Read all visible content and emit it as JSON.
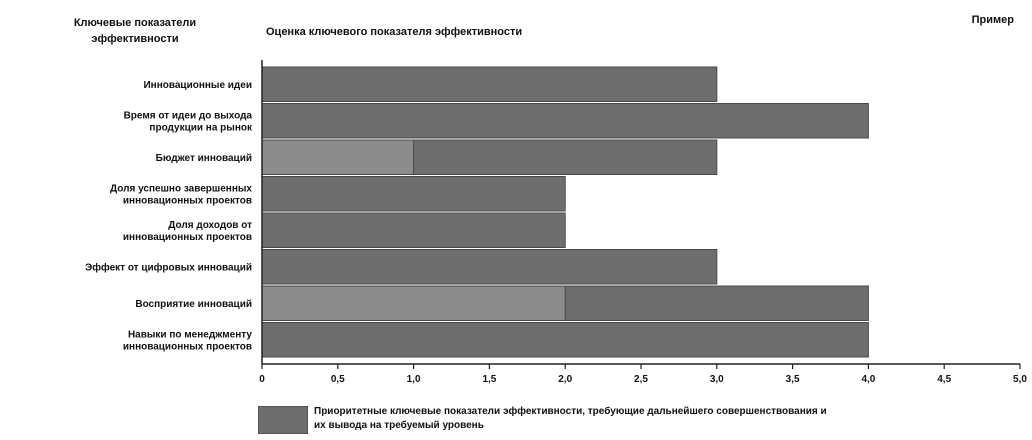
{
  "corner_label": "Пример",
  "chart_data": {
    "type": "bar",
    "orientation": "horizontal",
    "title": "Оценка ключевого показателя эффективности",
    "ylabel": "Ключевые показатели эффективности",
    "categories": [
      "Инновационные идеи",
      "Время от идеи до выхода продукции на рынок",
      "Бюджет инноваций",
      "Доля успешно завершенных инновационных проектов",
      "Доля доходов от инновационных проектов",
      "Эффект от цифровых инноваций",
      "Восприятие инноваций",
      "Навыки по менеджменту инновационных проектов"
    ],
    "category_lines": [
      [
        "Инновационные идеи"
      ],
      [
        "Время от идеи до выхода",
        "продукции на рынок"
      ],
      [
        "Бюджет инноваций"
      ],
      [
        "Доля успешно завершенных",
        "инновационных проектов"
      ],
      [
        "Доля доходов от",
        "инновационных проектов"
      ],
      [
        "Эффект от цифровых инноваций"
      ],
      [
        "Восприятие инноваций"
      ],
      [
        "Навыки по менеджменту",
        "инновационных проектов"
      ]
    ],
    "series": [
      {
        "name": "Приоритетные ключевые показатели эффективности, требующие дальнейшего совершенствования и их вывода на требуемый уровень",
        "values": [
          3.0,
          4.0,
          3.0,
          2.0,
          2.0,
          3.0,
          4.0,
          4.0
        ]
      }
    ],
    "secondary_values": [
      null,
      null,
      1.0,
      null,
      null,
      null,
      2.0,
      null
    ],
    "xlim": [
      0,
      5.0
    ],
    "xticks": [
      0,
      0.5,
      1.0,
      1.5,
      2.0,
      2.5,
      3.0,
      3.5,
      4.0,
      4.5,
      5.0
    ],
    "xtick_labels": [
      "0",
      "0,5",
      "1,0",
      "1,5",
      "2,0",
      "2,5",
      "3,0",
      "3,5",
      "4,0",
      "4,5",
      "5,0"
    ],
    "grid": false,
    "legend_position": "bottom",
    "colors": {
      "bar": "#6e6e6e",
      "bar_light": "#8c8c8c",
      "bar_stroke": "#4a4a4a"
    }
  }
}
